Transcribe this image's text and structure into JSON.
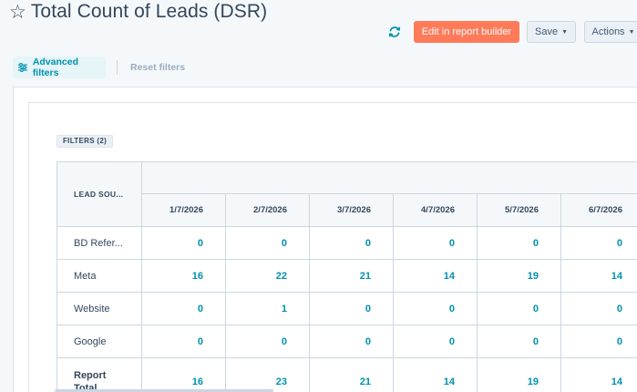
{
  "header": {
    "title": "Total Count of Leads (DSR)",
    "edit_label": "Edit in report builder",
    "save_label": "Save",
    "actions_label": "Actions",
    "star_icon": "star-outline-icon",
    "refresh_icon": "refresh-icon"
  },
  "filter_bar": {
    "advanced_label": "Advanced filters",
    "reset_label": "Reset filters"
  },
  "report": {
    "filters_badge": "FILTERS (2)",
    "column_header": "LEAD SOU...",
    "dates": [
      "1/7/2026",
      "2/7/2026",
      "3/7/2026",
      "4/7/2026",
      "5/7/2026",
      "6/7/2026"
    ],
    "rows": [
      {
        "label": "BD Refer...",
        "values": [
          "0",
          "0",
          "0",
          "0",
          "0",
          "0"
        ]
      },
      {
        "label": "Meta",
        "values": [
          "16",
          "22",
          "21",
          "14",
          "19",
          "14"
        ]
      },
      {
        "label": "Website",
        "values": [
          "0",
          "1",
          "0",
          "0",
          "0",
          "0"
        ]
      },
      {
        "label": "Google",
        "values": [
          "0",
          "0",
          "0",
          "0",
          "0",
          "0"
        ]
      }
    ],
    "total": {
      "label_line1": "Report",
      "label_line2": "Total",
      "values": [
        "16",
        "23",
        "21",
        "14",
        "19",
        "14"
      ]
    }
  },
  "colors": {
    "accent": "#ff7a59",
    "link": "#0091ae",
    "text": "#33475b"
  }
}
